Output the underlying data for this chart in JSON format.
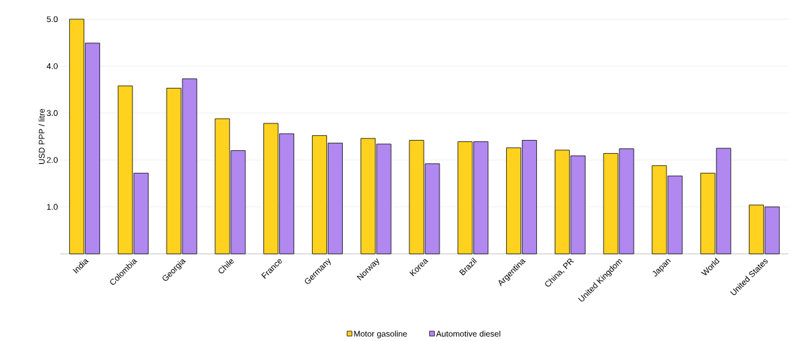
{
  "chart_data": {
    "type": "bar",
    "ylabel": "USD PPP / litre",
    "categories": [
      "India",
      "Colombia",
      "Georgia",
      "Chile",
      "France",
      "Germany",
      "Norway",
      "Korea",
      "Brazil",
      "Argentina",
      "China, PR",
      "United Kingdom",
      "Japan",
      "World",
      "United States"
    ],
    "series": [
      {
        "name": "Motor gasoline",
        "color": "#ffd21f",
        "values": [
          5.0,
          3.58,
          3.53,
          2.88,
          2.78,
          2.52,
          2.46,
          2.42,
          2.39,
          2.26,
          2.21,
          2.14,
          1.88,
          1.72,
          1.04
        ]
      },
      {
        "name": "Automotive diesel",
        "color": "#b088f0",
        "values": [
          4.49,
          1.72,
          3.73,
          2.2,
          2.56,
          2.36,
          2.34,
          1.92,
          2.39,
          2.42,
          2.09,
          2.24,
          1.66,
          2.25,
          1.0
        ]
      }
    ],
    "ylim": [
      0,
      5.0
    ],
    "yticks": [
      {
        "value": 1,
        "label": "1.0"
      },
      {
        "value": 2,
        "label": "2.0"
      },
      {
        "value": 3,
        "label": "3.0"
      },
      {
        "value": 4,
        "label": "4.0"
      },
      {
        "value": 5,
        "label": "5.0"
      }
    ],
    "grid": "y",
    "legend": "bottom"
  }
}
